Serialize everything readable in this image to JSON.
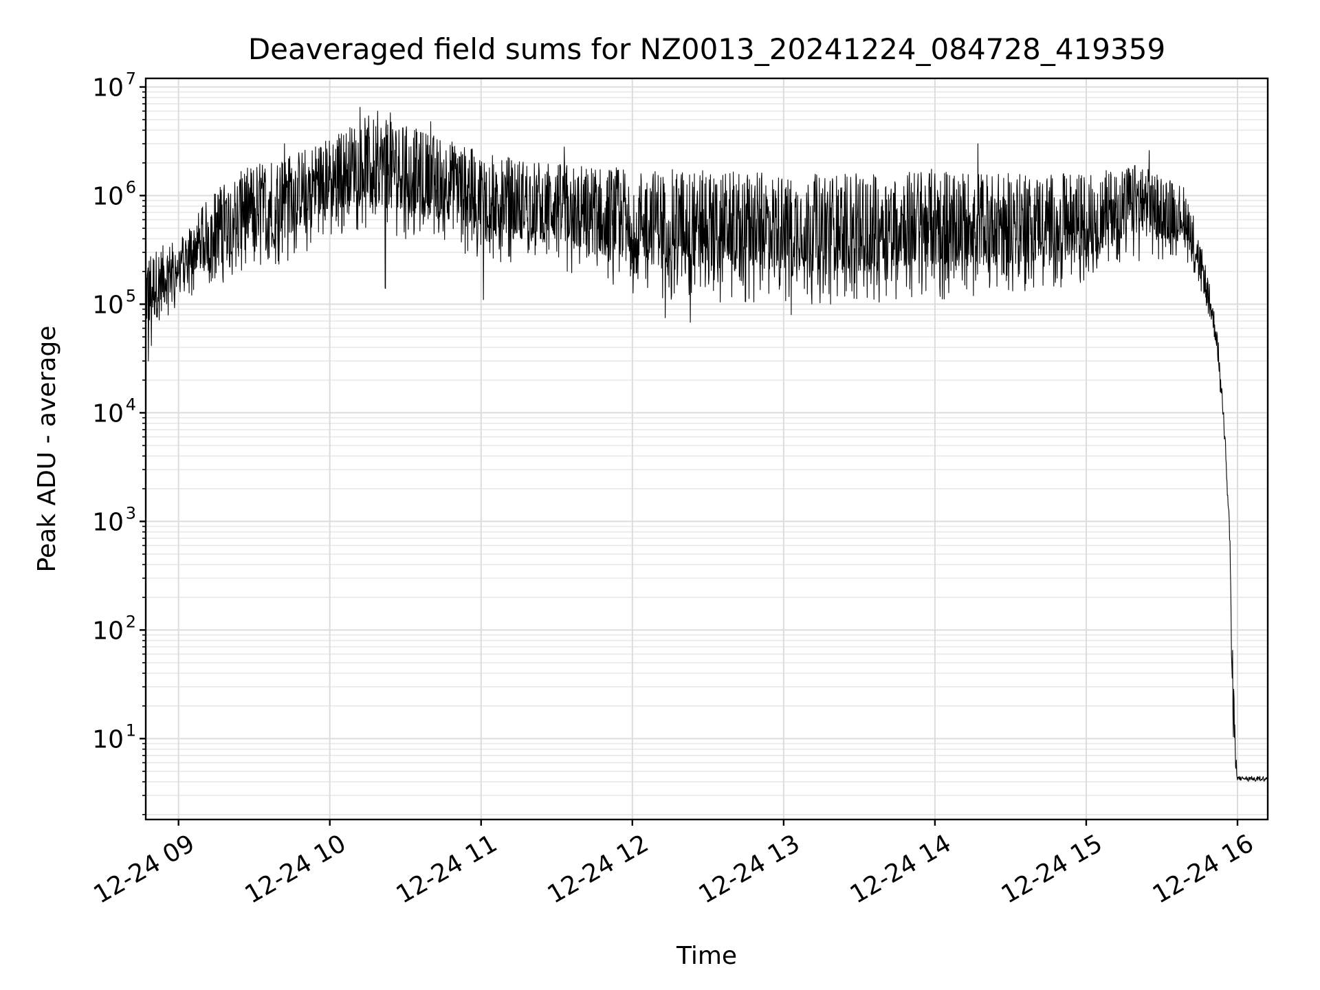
{
  "chart_data": {
    "type": "line",
    "title": "Deaveraged field sums for NZ0013_20241224_084728_419359",
    "xlabel": "Time",
    "ylabel": "Peak ADU - average",
    "yscale": "log",
    "ylim": [
      1.8,
      12000000
    ],
    "xlim": [
      "2024-12-24 08:47",
      "2024-12-24 16:12"
    ],
    "grid": true,
    "line_color": "#000000",
    "x_ticks": [
      {
        "t": "2024-12-24 09:00",
        "label": "12-24 09"
      },
      {
        "t": "2024-12-24 10:00",
        "label": "12-24 10"
      },
      {
        "t": "2024-12-24 11:00",
        "label": "12-24 11"
      },
      {
        "t": "2024-12-24 12:00",
        "label": "12-24 12"
      },
      {
        "t": "2024-12-24 13:00",
        "label": "12-24 13"
      },
      {
        "t": "2024-12-24 14:00",
        "label": "12-24 14"
      },
      {
        "t": "2024-12-24 15:00",
        "label": "12-24 15"
      },
      {
        "t": "2024-12-24 16:00",
        "label": "12-24 16"
      }
    ],
    "y_ticks": [
      {
        "value": 10,
        "base": "10",
        "exp": "1"
      },
      {
        "value": 100,
        "base": "10",
        "exp": "2"
      },
      {
        "value": 1000,
        "base": "10",
        "exp": "3"
      },
      {
        "value": 10000,
        "base": "10",
        "exp": "4"
      },
      {
        "value": 100000,
        "base": "10",
        "exp": "5"
      },
      {
        "value": 1000000,
        "base": "10",
        "exp": "6"
      },
      {
        "value": 10000000,
        "base": "10",
        "exp": "7"
      }
    ],
    "series": [
      {
        "envelope": [
          {
            "t": "2024-12-24 08:47",
            "low": 30000,
            "high": 300000
          },
          {
            "t": "2024-12-24 09:00",
            "low": 100000,
            "high": 400000
          },
          {
            "t": "2024-12-24 09:15",
            "low": 150000,
            "high": 1200000
          },
          {
            "t": "2024-12-24 09:30",
            "low": 200000,
            "high": 2000000
          },
          {
            "t": "2024-12-24 09:45",
            "low": 250000,
            "high": 2500000
          },
          {
            "t": "2024-12-24 10:00",
            "low": 400000,
            "high": 3500000
          },
          {
            "t": "2024-12-24 10:15",
            "low": 500000,
            "high": 5500000
          },
          {
            "t": "2024-12-24 10:30",
            "low": 400000,
            "high": 4500000
          },
          {
            "t": "2024-12-24 10:45",
            "low": 350000,
            "high": 3500000
          },
          {
            "t": "2024-12-24 11:00",
            "low": 250000,
            "high": 2500000
          },
          {
            "t": "2024-12-24 11:30",
            "low": 200000,
            "high": 2000000
          },
          {
            "t": "2024-12-24 12:00",
            "low": 120000,
            "high": 1800000
          },
          {
            "t": "2024-12-24 12:30",
            "low": 100000,
            "high": 1700000
          },
          {
            "t": "2024-12-24 13:00",
            "low": 100000,
            "high": 1600000
          },
          {
            "t": "2024-12-24 13:30",
            "low": 100000,
            "high": 1600000
          },
          {
            "t": "2024-12-24 14:00",
            "low": 110000,
            "high": 1800000
          },
          {
            "t": "2024-12-24 14:30",
            "low": 120000,
            "high": 1600000
          },
          {
            "t": "2024-12-24 15:00",
            "low": 150000,
            "high": 1600000
          },
          {
            "t": "2024-12-24 15:20",
            "low": 250000,
            "high": 2000000
          },
          {
            "t": "2024-12-24 15:40",
            "low": 250000,
            "high": 1200000
          },
          {
            "t": "2024-12-24 15:48",
            "low": 80000,
            "high": 200000
          },
          {
            "t": "2024-12-24 15:52",
            "low": 30000,
            "high": 60000
          },
          {
            "t": "2024-12-24 15:55",
            "low": 5000,
            "high": 8000
          },
          {
            "t": "2024-12-24 15:57",
            "low": 500,
            "high": 800
          },
          {
            "t": "2024-12-24 15:58",
            "low": 4,
            "high": 60
          },
          {
            "t": "2024-12-24 16:00",
            "low": 4,
            "high": 4.5
          },
          {
            "t": "2024-12-24 16:12",
            "low": 4,
            "high": 4.5
          }
        ],
        "spikes": [
          {
            "t": "2024-12-24 08:48",
            "value": 30000
          },
          {
            "t": "2024-12-24 09:42",
            "value": 3000000
          },
          {
            "t": "2024-12-24 10:12",
            "value": 6500000
          },
          {
            "t": "2024-12-24 10:19",
            "value": 6000000
          },
          {
            "t": "2024-12-24 10:24",
            "value": 5800000
          },
          {
            "t": "2024-12-24 10:40",
            "value": 4800000
          },
          {
            "t": "2024-12-24 10:22",
            "value": 140000
          },
          {
            "t": "2024-12-24 11:01",
            "value": 110000
          },
          {
            "t": "2024-12-24 11:33",
            "value": 2800000
          },
          {
            "t": "2024-12-24 12:13",
            "value": 75000
          },
          {
            "t": "2024-12-24 12:23",
            "value": 68000
          },
          {
            "t": "2024-12-24 13:03",
            "value": 80000
          },
          {
            "t": "2024-12-24 14:17",
            "value": 3000000
          },
          {
            "t": "2024-12-24 15:25",
            "value": 2600000
          },
          {
            "t": "2024-12-24 15:58",
            "value": 65
          }
        ]
      }
    ]
  }
}
